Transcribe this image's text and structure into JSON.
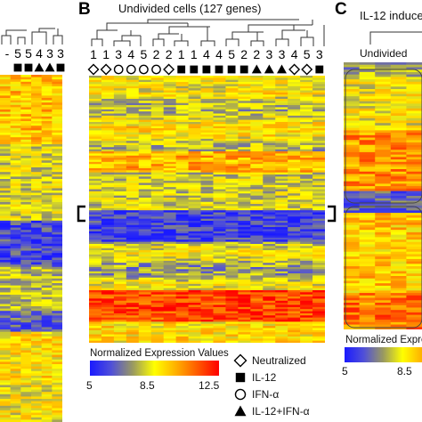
{
  "panels": {
    "B": {
      "letter": "B",
      "title": "Undivided cells (127 genes)",
      "column_numbers": [
        "1",
        "1",
        "3",
        "4",
        "5",
        "2",
        "2",
        "1",
        "1",
        "4",
        "4",
        "5",
        "2",
        "2",
        "3",
        "3",
        "4",
        "5",
        "3"
      ],
      "column_treatments": [
        "diamond",
        "diamond",
        "circle",
        "circle",
        "circle",
        "circle",
        "diamond",
        "square",
        "square",
        "square",
        "square",
        "square",
        "square",
        "triangle",
        "triangle",
        "triangle",
        "diamond",
        "diamond",
        "square"
      ]
    },
    "C": {
      "letter": "C",
      "title": "IL-12 induce",
      "sub_label": "Undivided",
      "legend_title": "Normalized Expre",
      "ticks": [
        "5",
        "8.5"
      ]
    },
    "A": {
      "column_numbers": [
        "-",
        "5",
        "5",
        "4",
        "3",
        "3"
      ],
      "column_treatments": [
        "",
        "square",
        "square",
        "triangle",
        "triangle",
        "square"
      ]
    }
  },
  "legend": {
    "title": "Normalized Expression Values",
    "ticks": [
      "5",
      "8.5",
      "12.5"
    ],
    "colors": [
      "#1a1aff",
      "#5050d8",
      "#9a9a60",
      "#ffff00",
      "#ffb000",
      "#ff5a00",
      "#ff0000"
    ]
  },
  "treatment_key": [
    {
      "symbol": "diamond",
      "label": "Neutralized"
    },
    {
      "symbol": "square",
      "label": "IL-12"
    },
    {
      "symbol": "circle",
      "label": "IFN-α"
    },
    {
      "symbol": "triangle",
      "label": "IL-12+IFN-α"
    }
  ]
}
